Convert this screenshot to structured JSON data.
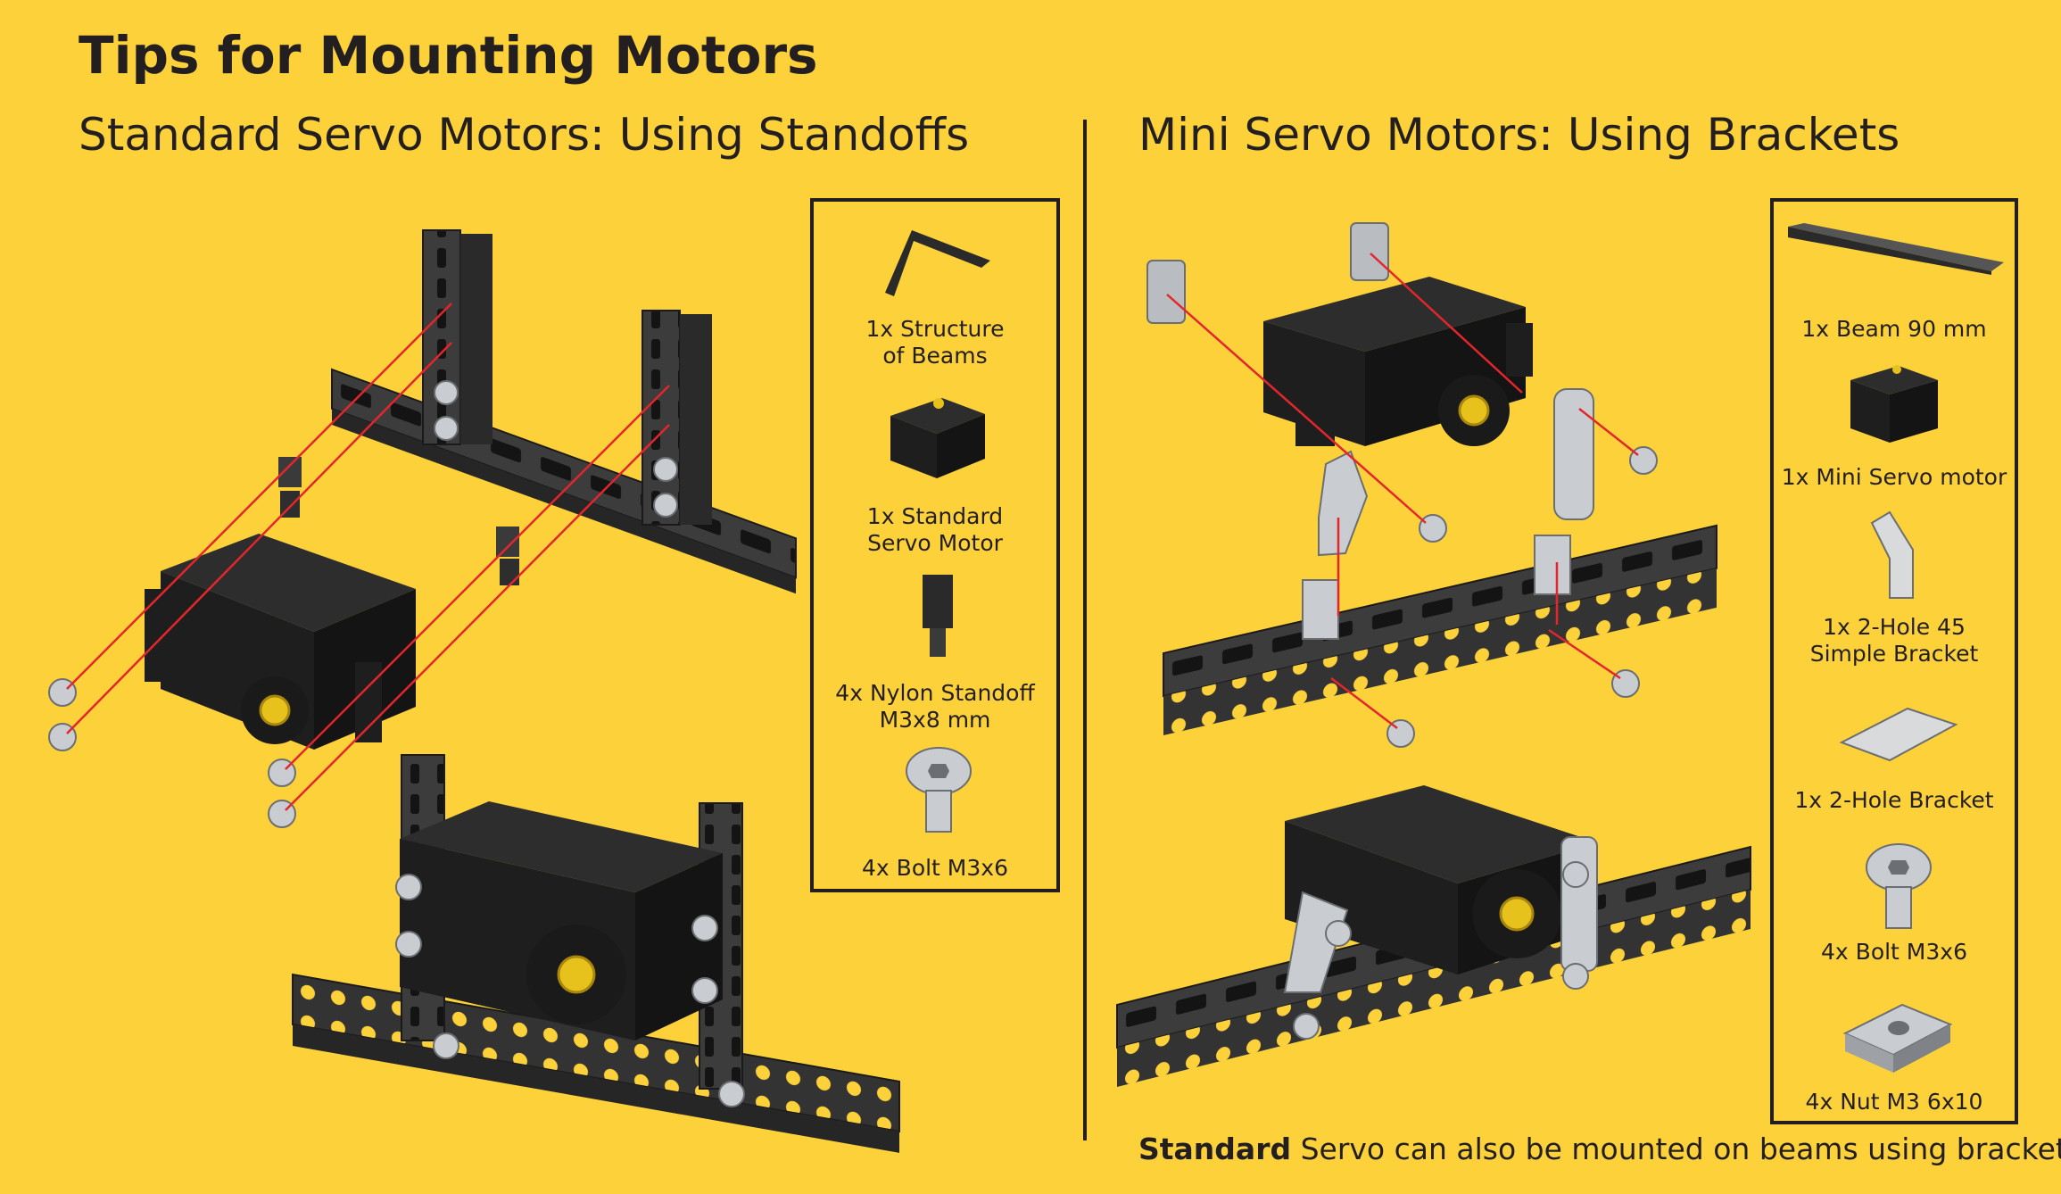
{
  "title": "Tips for Mounting Motors",
  "left": {
    "subtitle": "Standard Servo Motors: Using Standoffs",
    "parts": [
      {
        "label": "1x Structure\nof Beams",
        "icon": "beam-structure-icon"
      },
      {
        "label": "1x Standard\nServo Motor",
        "icon": "standard-servo-icon"
      },
      {
        "label": "4x Nylon Standoff\nM3x8 mm",
        "icon": "nylon-standoff-icon"
      },
      {
        "label": "4x Bolt M3x6",
        "icon": "bolt-icon"
      }
    ]
  },
  "right": {
    "subtitle": "Mini Servo Motors: Using Brackets",
    "parts": [
      {
        "label": "1x Beam 90 mm",
        "icon": "beam-icon"
      },
      {
        "label": "1x Mini Servo motor",
        "icon": "mini-servo-icon"
      },
      {
        "label": "1x 2-Hole 45\nSimple Bracket",
        "icon": "angled-bracket-icon"
      },
      {
        "label": "1x 2-Hole Bracket",
        "icon": "two-hole-bracket-icon"
      },
      {
        "label": "4x Bolt M3x6",
        "icon": "bolt-icon"
      },
      {
        "label": "4x Nut M3 6x10",
        "icon": "nut-icon"
      }
    ]
  },
  "footnote": {
    "bold": "Standard",
    "rest": " Servo can also be mounted on beams using brackets."
  },
  "colors": {
    "background": "#fdd13a",
    "text": "#231f20",
    "servo": "#1e1e1e",
    "beam": "#3c3c3c",
    "metal": "#c9ccd0",
    "gear": "#e8c21c",
    "arrow": "#e3262b"
  }
}
